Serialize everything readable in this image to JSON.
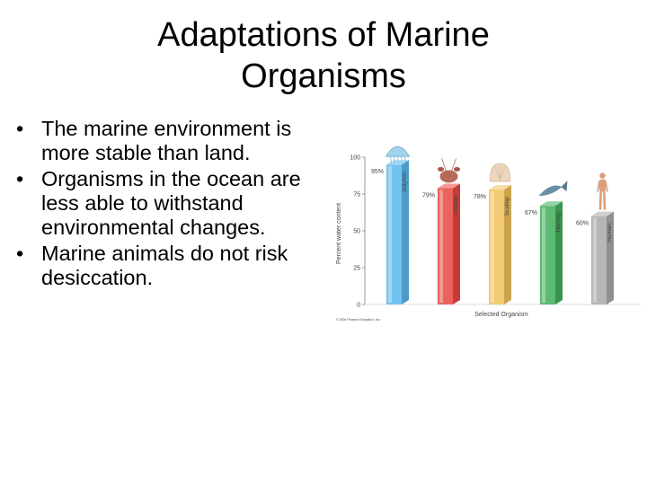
{
  "slide": {
    "title_line1": "Adaptations of Marine",
    "title_line2": "Organisms",
    "bullets": [
      "The marine environment is more stable than land.",
      "Organisms in the ocean are less able to withstand environmental changes.",
      "Marine animals do not risk desiccation."
    ]
  },
  "chart_data": {
    "type": "bar",
    "categories": [
      "Jellyfish",
      "Lobster",
      "Scallop",
      "Herring",
      "Human"
    ],
    "values": [
      95,
      79,
      78,
      67,
      60
    ],
    "value_labels": [
      "95%",
      "79%",
      "78%",
      "67%",
      "60%"
    ],
    "ylabel": "Percent water content",
    "xlabel": "Selected Organism",
    "yticks": [
      0,
      25,
      50,
      75,
      100
    ],
    "ylim": [
      0,
      100
    ],
    "colors": [
      "#59b8ec",
      "#e8473f",
      "#f0c15a",
      "#3fae59",
      "#a9a9a9"
    ],
    "icons": [
      "jellyfish-icon",
      "lobster-icon",
      "scallop-icon",
      "herring-icon",
      "human-icon"
    ],
    "credit": "© 2004 Pearson Education, Inc."
  }
}
